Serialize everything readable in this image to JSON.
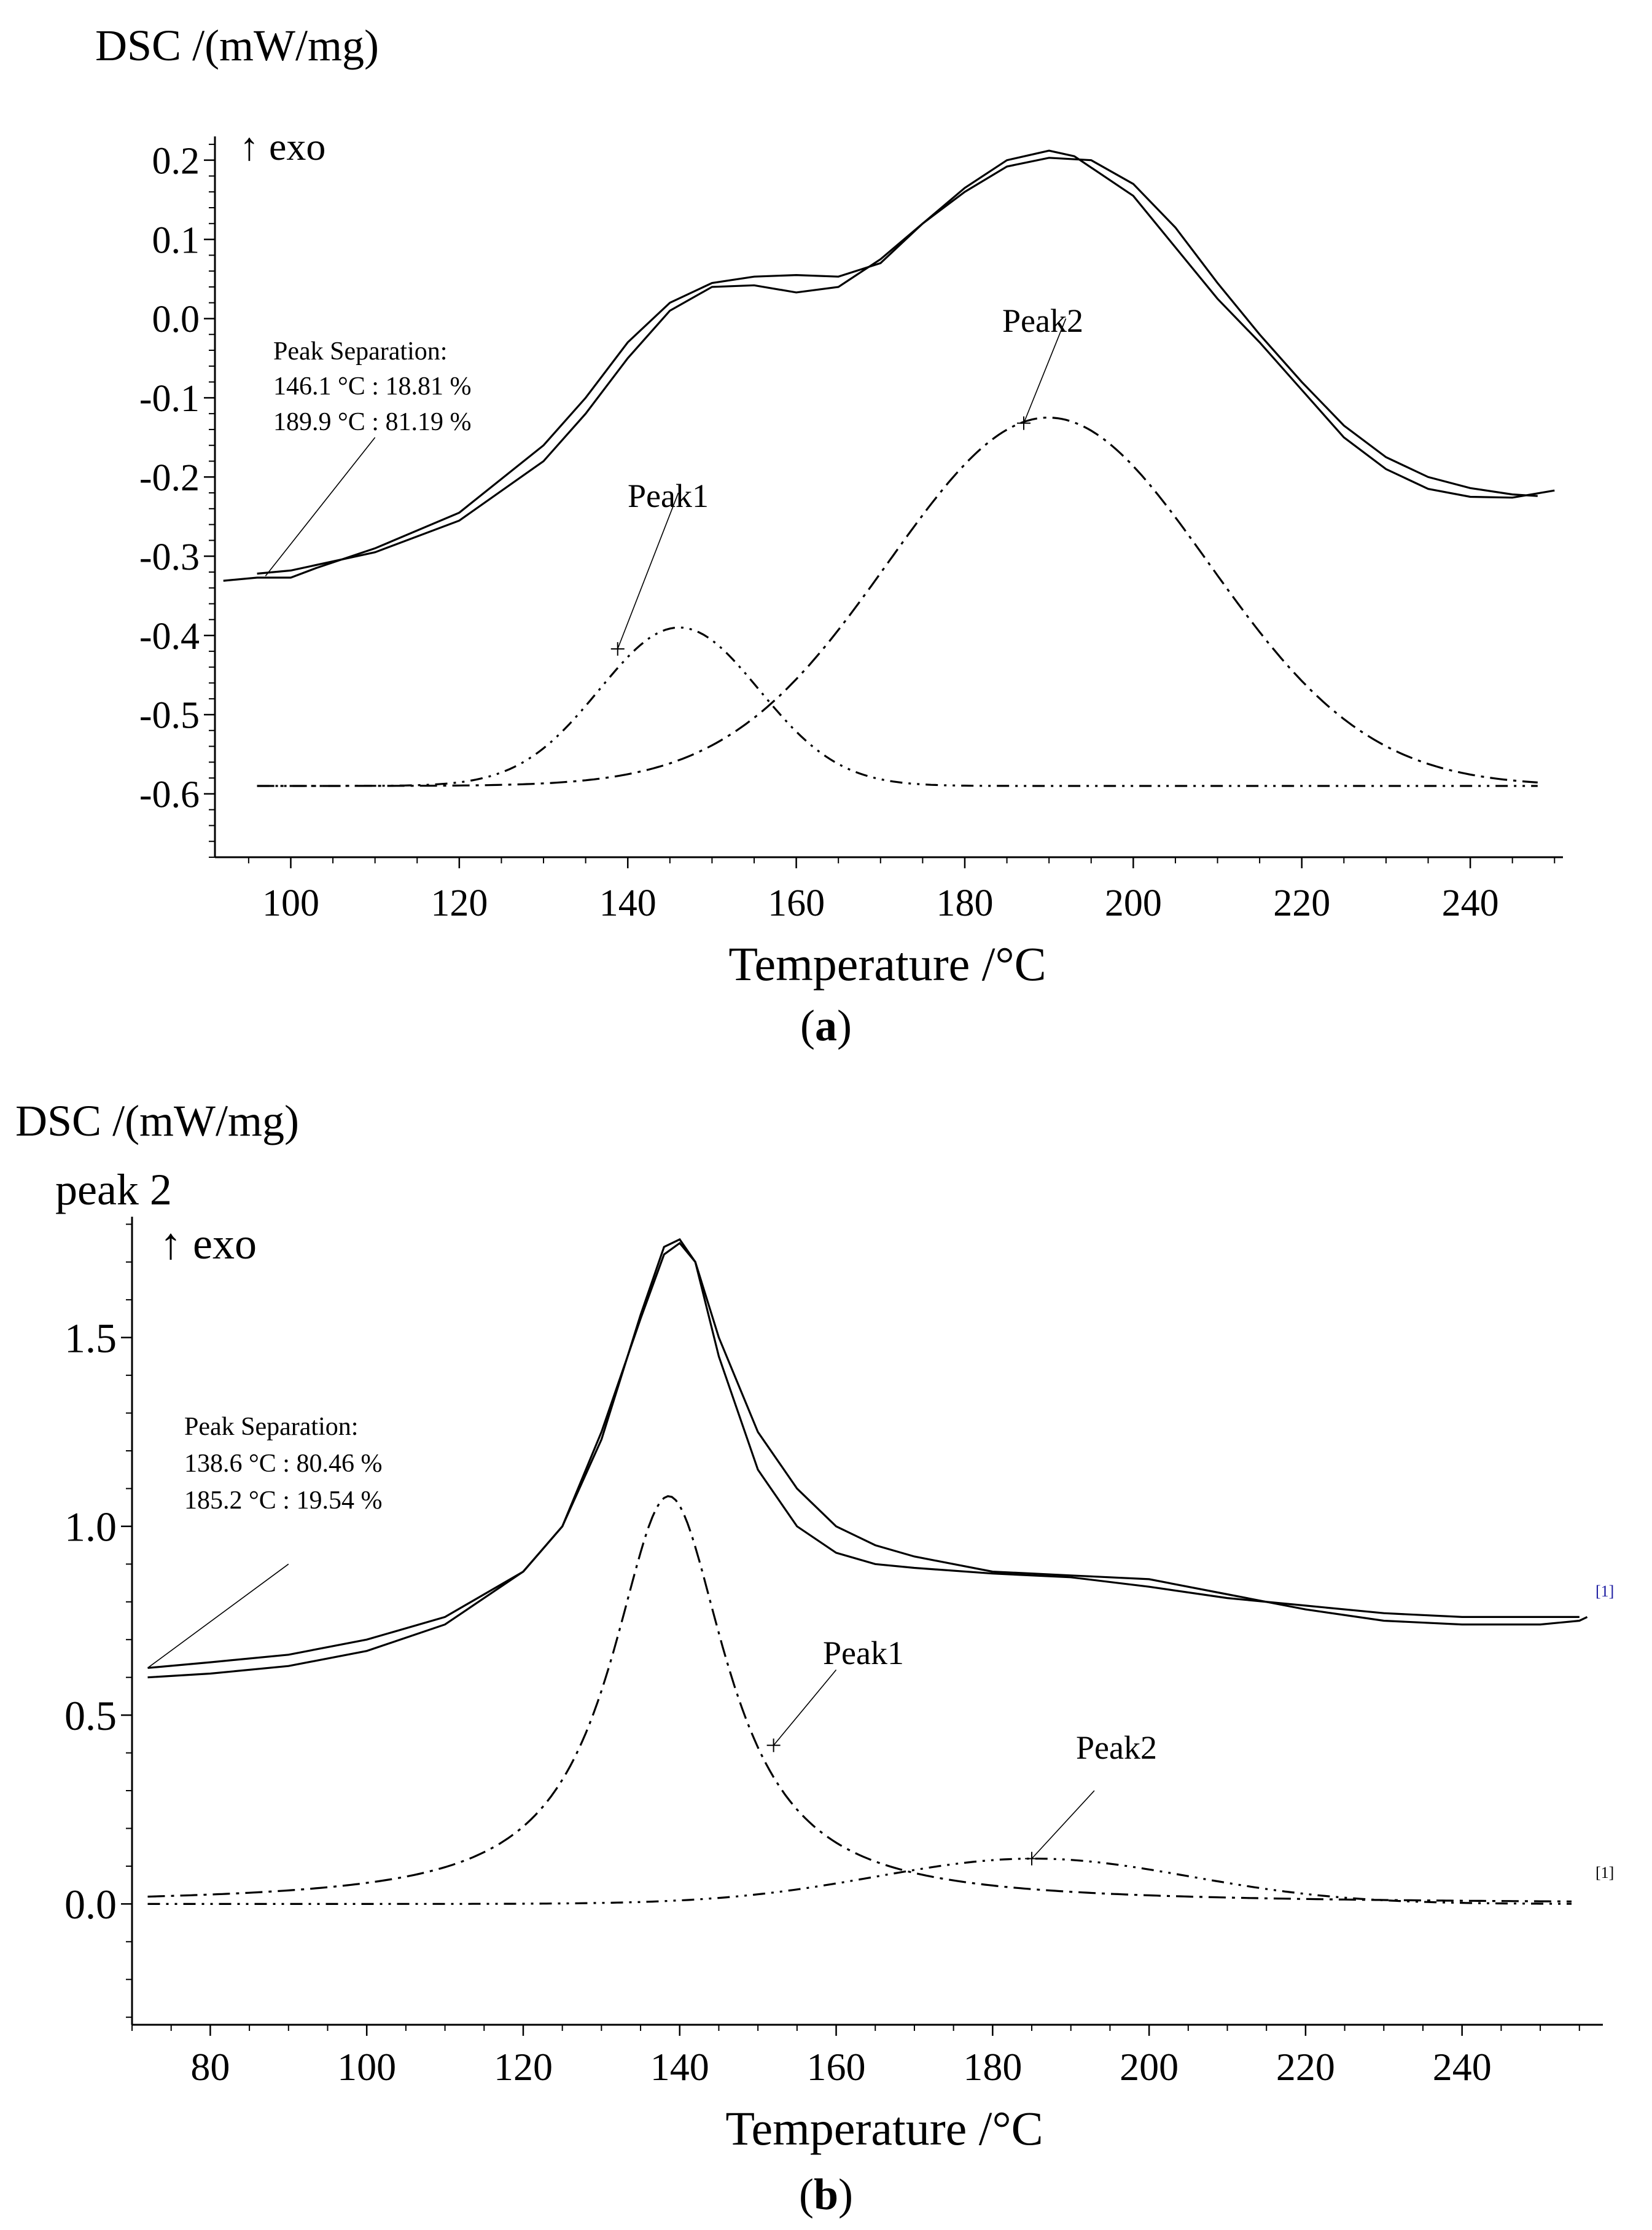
{
  "chart_data": [
    {
      "panel_label": "a",
      "type": "line",
      "ylabel": "DSC /(mW/mg)",
      "xlabel": "Temperature /°C",
      "direction_label": "↑ exo",
      "xlim": [
        91,
        251
      ],
      "ylim": [
        -0.68,
        0.23
      ],
      "x_ticks": [
        100,
        120,
        140,
        160,
        180,
        200,
        220,
        240
      ],
      "y_ticks": [
        0.2,
        0.1,
        0.0,
        -0.1,
        -0.2,
        -0.3,
        -0.4,
        -0.5,
        -0.6
      ],
      "y_tick_labels": [
        "0.2",
        "0.1",
        "0.0",
        "-0.1",
        "-0.2",
        "-0.3",
        "-0.4",
        "-0.5",
        "-0.6"
      ],
      "annotation": {
        "title": "Peak Separation:",
        "lines": [
          "146.1 °C : 18.81 %",
          "189.9 °C : 81.19 %"
        ]
      },
      "peak_labels": [
        "Peak1",
        "Peak2"
      ],
      "series": [
        {
          "name": "measured",
          "color": "#ff0000",
          "points": [
            [
              92,
              -0.331
            ],
            [
              96,
              -0.327
            ],
            [
              100,
              -0.327
            ],
            [
              103,
              -0.315
            ],
            [
              110,
              -0.29
            ],
            [
              120,
              -0.245
            ],
            [
              130,
              -0.16
            ],
            [
              135,
              -0.1
            ],
            [
              140,
              -0.03
            ],
            [
              145,
              0.02
            ],
            [
              150,
              0.045
            ],
            [
              155,
              0.053
            ],
            [
              160,
              0.055
            ],
            [
              165,
              0.053
            ],
            [
              170,
              0.07
            ],
            [
              175,
              0.12
            ],
            [
              180,
              0.165
            ],
            [
              185,
              0.2
            ],
            [
              190,
              0.212
            ],
            [
              193,
              0.205
            ],
            [
              200,
              0.155
            ],
            [
              205,
              0.09
            ],
            [
              210,
              0.025
            ],
            [
              215,
              -0.03
            ],
            [
              220,
              -0.09
            ],
            [
              225,
              -0.15
            ],
            [
              230,
              -0.19
            ],
            [
              235,
              -0.215
            ],
            [
              240,
              -0.225
            ],
            [
              245,
              -0.226
            ],
            [
              250,
              -0.217
            ]
          ]
        },
        {
          "name": "fit",
          "color": "#000000",
          "points": [
            [
              96,
              -0.322
            ],
            [
              100,
              -0.318
            ],
            [
              110,
              -0.295
            ],
            [
              120,
              -0.255
            ],
            [
              130,
              -0.18
            ],
            [
              135,
              -0.12
            ],
            [
              140,
              -0.05
            ],
            [
              145,
              0.01
            ],
            [
              150,
              0.04
            ],
            [
              155,
              0.042
            ],
            [
              160,
              0.033
            ],
            [
              165,
              0.04
            ],
            [
              170,
              0.075
            ],
            [
              175,
              0.12
            ],
            [
              180,
              0.16
            ],
            [
              185,
              0.192
            ],
            [
              190,
              0.203
            ],
            [
              195,
              0.2
            ],
            [
              200,
              0.17
            ],
            [
              205,
              0.115
            ],
            [
              210,
              0.045
            ],
            [
              215,
              -0.02
            ],
            [
              220,
              -0.08
            ],
            [
              225,
              -0.135
            ],
            [
              230,
              -0.175
            ],
            [
              235,
              -0.2
            ],
            [
              240,
              -0.214
            ],
            [
              245,
              -0.222
            ],
            [
              248,
              -0.224
            ]
          ]
        },
        {
          "name": "Peak1",
          "dash": "dash-dot-dot",
          "baseline": -0.59,
          "center": 146.1,
          "amplitude": 0.2,
          "sigma": 9.5,
          "x_range": [
            96,
            248
          ]
        },
        {
          "name": "Peak2",
          "dash": "dash-dot",
          "baseline": -0.59,
          "center": 189.9,
          "amplitude": 0.465,
          "sigma": 19,
          "x_range": [
            96,
            248
          ]
        }
      ],
      "markers": [
        {
          "label": "Peak1",
          "x": 138.8,
          "y": -0.417,
          "label_x": 146,
          "label_y": -0.22
        },
        {
          "label": "Peak2",
          "x": 187,
          "y": -0.132,
          "label_x": 192,
          "label_y": 0.0
        },
        {
          "label": "sep",
          "x": 97,
          "y": -0.325,
          "label_x": 110,
          "label_y": -0.15
        }
      ]
    },
    {
      "panel_label": "b",
      "type": "line",
      "ylabel": "DSC /(mW/mg)",
      "extra_label": "peak 2",
      "xlabel": "Temperature /°C",
      "direction_label": "↑ exo",
      "xlim": [
        70,
        258
      ],
      "ylim": [
        -0.32,
        1.82
      ],
      "x_ticks": [
        80,
        100,
        120,
        140,
        160,
        180,
        200,
        220,
        240
      ],
      "y_ticks": [
        1.5,
        1.0,
        0.5,
        0.0
      ],
      "y_tick_labels": [
        "1.5",
        "1.0",
        "0.5",
        "0.0"
      ],
      "annotation": {
        "title": "Peak Separation:",
        "lines": [
          "138.6 °C : 80.46 %",
          "185.2 °C : 19.54 %"
        ]
      },
      "peak_labels": [
        "Peak1",
        "Peak2"
      ],
      "end_marker_text": "[1]",
      "series": [
        {
          "name": "measured",
          "color": "#0000ee",
          "points": [
            [
              72,
              0.6
            ],
            [
              80,
              0.61
            ],
            [
              90,
              0.63
            ],
            [
              100,
              0.67
            ],
            [
              110,
              0.74
            ],
            [
              120,
              0.88
            ],
            [
              125,
              1.0
            ],
            [
              130,
              1.25
            ],
            [
              135,
              1.55
            ],
            [
              138,
              1.72
            ],
            [
              140,
              1.75
            ],
            [
              142,
              1.7
            ],
            [
              145,
              1.5
            ],
            [
              150,
              1.25
            ],
            [
              155,
              1.1
            ],
            [
              160,
              1.0
            ],
            [
              165,
              0.95
            ],
            [
              170,
              0.92
            ],
            [
              180,
              0.88
            ],
            [
              190,
              0.87
            ],
            [
              200,
              0.86
            ],
            [
              210,
              0.82
            ],
            [
              220,
              0.78
            ],
            [
              230,
              0.75
            ],
            [
              240,
              0.74
            ],
            [
              250,
              0.74
            ],
            [
              255,
              0.75
            ],
            [
              256,
              0.76
            ]
          ]
        },
        {
          "name": "fit",
          "color": "#000000",
          "points": [
            [
              72,
              0.625
            ],
            [
              80,
              0.64
            ],
            [
              90,
              0.66
            ],
            [
              100,
              0.7
            ],
            [
              110,
              0.76
            ],
            [
              120,
              0.88
            ],
            [
              125,
              1.0
            ],
            [
              130,
              1.23
            ],
            [
              135,
              1.56
            ],
            [
              138,
              1.74
            ],
            [
              140,
              1.76
            ],
            [
              142,
              1.7
            ],
            [
              145,
              1.45
            ],
            [
              150,
              1.15
            ],
            [
              155,
              1.0
            ],
            [
              160,
              0.93
            ],
            [
              165,
              0.9
            ],
            [
              170,
              0.89
            ],
            [
              180,
              0.875
            ],
            [
              190,
              0.865
            ],
            [
              200,
              0.84
            ],
            [
              210,
              0.81
            ],
            [
              220,
              0.79
            ],
            [
              230,
              0.77
            ],
            [
              240,
              0.76
            ],
            [
              255,
              0.76
            ]
          ]
        },
        {
          "name": "Peak1",
          "dash": "dash-dot",
          "type_shape": "lorentz",
          "baseline": 0.0,
          "center": 138.6,
          "amplitude": 1.08,
          "gamma": 9,
          "x_range": [
            72,
            254
          ]
        },
        {
          "name": "Peak2",
          "dash": "dash-dot-dot",
          "baseline": 0.0,
          "center": 185.2,
          "amplitude": 0.12,
          "sigma": 20,
          "x_range": [
            72,
            254
          ]
        }
      ],
      "markers": [
        {
          "label": "Peak1",
          "x": 152,
          "y": 0.42,
          "label_x": 160,
          "label_y": 0.62
        },
        {
          "label": "Peak2",
          "x": 185,
          "y": 0.12,
          "label_x": 193,
          "label_y": 0.3
        },
        {
          "label": "sep",
          "x": 72,
          "y": 0.625,
          "label_x": 90,
          "label_y": 0.9
        }
      ]
    }
  ]
}
